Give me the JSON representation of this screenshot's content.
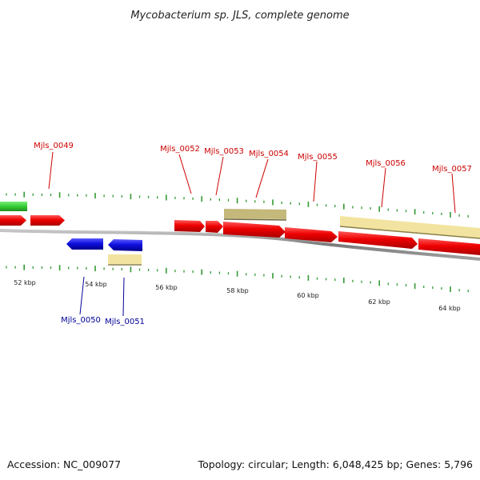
{
  "title": "Mycobacterium sp. JLS, complete genome",
  "footer": {
    "accession": "Accession: NC_009077",
    "topology": "Topology: circular; Length: 6,048,425 bp; Genes: 5,796"
  },
  "colors": {
    "forward_gene": "#ee0000",
    "reverse_gene": "#1010e0",
    "pseudo_gene_light": "#f2e4a0",
    "pseudo_gene_dark": "#c4b87a",
    "green_gene": "#33cc33",
    "forward_label": "#cc0000",
    "reverse_label": "#000099",
    "ticks": "#339933",
    "backbone": "#888888"
  },
  "scale_labels": [
    "52 kbp",
    "54 kbp",
    "56 kbp",
    "58 kbp",
    "60 kbp",
    "62 kbp",
    "64 kbp"
  ],
  "genes_forward": [
    "Mjls_0049",
    "Mjls_0052",
    "Mjls_0053",
    "Mjls_0054",
    "Mjls_0055",
    "Mjls_0056",
    "Mjls_0057"
  ],
  "genes_reverse": [
    "Mjls_0050",
    "Mjls_0051"
  ]
}
